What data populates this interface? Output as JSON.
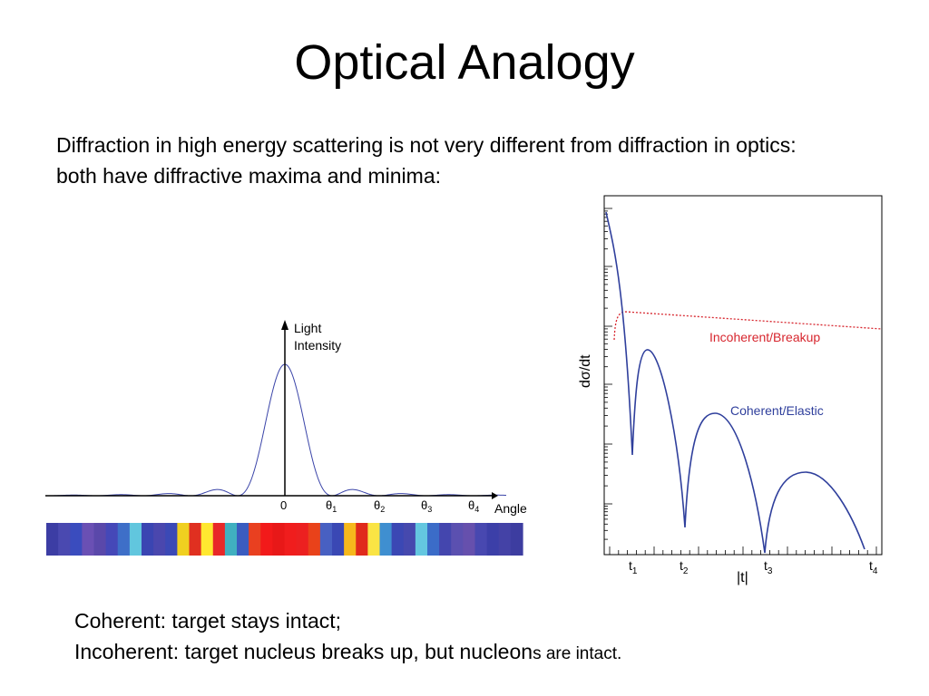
{
  "slide": {
    "title": "Optical Analogy",
    "intro_line1": "Diffraction in high energy scattering is not very different from diffraction in optics:",
    "intro_line2": "both have diffractive maxima and minima:",
    "bottom_line1": "Coherent: target stays intact;",
    "bottom_line2_main": "Incoherent: target nucleus breaks up, but nucleon",
    "bottom_line2_small": "s are intact."
  },
  "optics_figure": {
    "y_label_line1": "Light",
    "y_label_line2": "Intensity",
    "x_label": "Angle",
    "tick_zero": "0",
    "theta_symbol": "θ",
    "theta_ticks": [
      "1",
      "2",
      "3",
      "4"
    ],
    "color_band": [
      "#3c3da4",
      "#4a49b0",
      "#3a4cbe",
      "#6a50b4",
      "#5a48aa",
      "#4548b8",
      "#3e6fc8",
      "#61c6de",
      "#3a45b2",
      "#4a47ae",
      "#3b49b6",
      "#f0d020",
      "#e03020",
      "#ffe830",
      "#e82828",
      "#40b0c0",
      "#3a5cc0",
      "#e94020",
      "#f21a1a",
      "#e81818",
      "#f01d1d",
      "#ec2020",
      "#e9421a",
      "#4860c2",
      "#3a48b4",
      "#f6b81c",
      "#e02a1c",
      "#fae444",
      "#3f8fd0",
      "#3b48b4",
      "#4649ae",
      "#64c7e0",
      "#3b6cc8",
      "#4446ae",
      "#5b50b0",
      "#6650ad",
      "#4848b0",
      "#3c3fa8",
      "#4442a6",
      "#3d3da0"
    ]
  },
  "chart_data": {
    "type": "line",
    "ylabel": "dσ/dt",
    "xlabel": "|t|",
    "x_ticks": [
      {
        "base": "t",
        "sub": "1"
      },
      {
        "base": "t",
        "sub": "2"
      },
      {
        "base": "t",
        "sub": "3"
      },
      {
        "base": "t",
        "sub": "4"
      }
    ],
    "log_y": true,
    "series": [
      {
        "name": "Incoherent/Breakup",
        "color": "#d7262e",
        "style": "dotted"
      },
      {
        "name": "Coherent/Elastic",
        "color": "#2f3f9c",
        "style": "solid"
      }
    ]
  }
}
